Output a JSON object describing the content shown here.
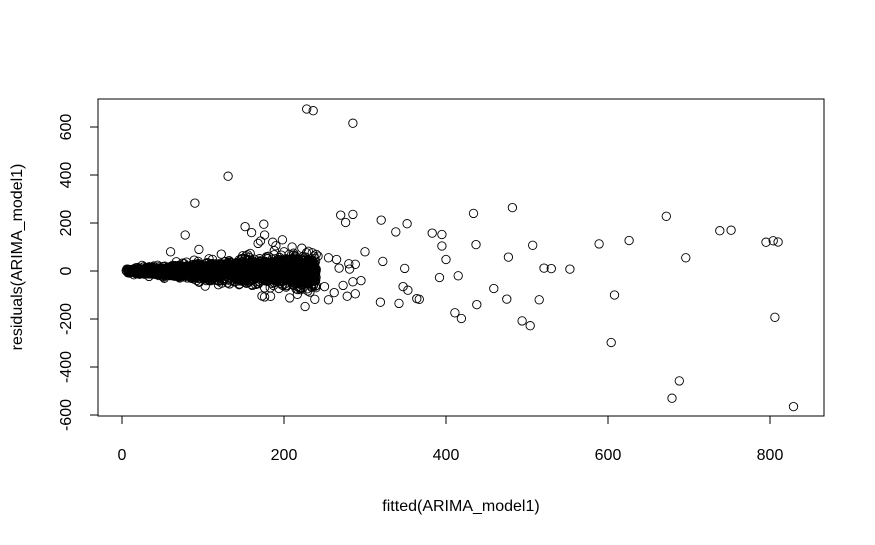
{
  "chart_data": {
    "type": "scatter",
    "title": "",
    "xlabel": "fitted(ARIMA_model1)",
    "ylabel": "residuals(ARIMA_model1)",
    "xlim": [
      -30,
      860
    ],
    "ylim": [
      -620,
      720
    ],
    "xticks": [
      0,
      200,
      400,
      600,
      800
    ],
    "yticks": [
      -600,
      -400,
      -200,
      0,
      200,
      400,
      600
    ],
    "xtick_labels": [
      "0",
      "200",
      "400",
      "600",
      "800"
    ],
    "ytick_labels": [
      "-600",
      "-400",
      "-200",
      "0",
      "200",
      "400",
      "600"
    ],
    "grid": false,
    "legend": "none",
    "marker": "open-circle",
    "colors": {
      "marker_stroke": "#000000",
      "axis": "#000000",
      "background": "#ffffff"
    },
    "series": [
      {
        "points": [
          [
            228,
            675
          ],
          [
            236,
            668
          ],
          [
            285,
            616
          ],
          [
            131,
            395
          ],
          [
            90,
            283
          ],
          [
            270,
            233
          ],
          [
            285,
            236
          ],
          [
            320,
            212
          ],
          [
            352,
            197
          ],
          [
            276,
            202
          ],
          [
            434,
            240
          ],
          [
            482,
            264
          ],
          [
            672,
            228
          ],
          [
            738,
            168
          ],
          [
            752,
            170
          ],
          [
            338,
            163
          ],
          [
            383,
            158
          ],
          [
            395,
            152
          ],
          [
            626,
            127
          ],
          [
            589,
            113
          ],
          [
            437,
            110
          ],
          [
            395,
            104
          ],
          [
            507,
            107
          ],
          [
            804,
            126
          ],
          [
            810,
            121
          ],
          [
            795,
            120
          ],
          [
            696,
            55
          ],
          [
            477,
            58
          ],
          [
            400,
            48
          ],
          [
            300,
            80
          ],
          [
            322,
            40
          ],
          [
            521,
            12
          ],
          [
            530,
            10
          ],
          [
            553,
            8
          ],
          [
            349,
            11
          ],
          [
            392,
            -27
          ],
          [
            415,
            -20
          ],
          [
            347,
            -65
          ],
          [
            353,
            -80
          ],
          [
            367,
            -118
          ],
          [
            364,
            -115
          ],
          [
            342,
            -135
          ],
          [
            319,
            -130
          ],
          [
            459,
            -73
          ],
          [
            475,
            -117
          ],
          [
            515,
            -120
          ],
          [
            438,
            -140
          ],
          [
            411,
            -174
          ],
          [
            419,
            -198
          ],
          [
            494,
            -208
          ],
          [
            504,
            -228
          ],
          [
            608,
            -100
          ],
          [
            806,
            -193
          ],
          [
            604,
            -298
          ],
          [
            688,
            -458
          ],
          [
            679,
            -530
          ],
          [
            829,
            -565
          ],
          [
            255,
            -120
          ],
          [
            238,
            -118
          ],
          [
            226,
            -148
          ],
          [
            207,
            -112
          ],
          [
            176,
            -108
          ],
          [
            250,
            -65
          ],
          [
            273,
            -60
          ],
          [
            285,
            -45
          ],
          [
            295,
            -40
          ],
          [
            288,
            -95
          ],
          [
            278,
            -105
          ],
          [
            262,
            -90
          ],
          [
            212,
            -60
          ],
          [
            183,
            -70
          ],
          [
            160,
            160
          ],
          [
            176,
            150
          ],
          [
            186,
            120
          ],
          [
            171,
            125
          ],
          [
            78,
            150
          ],
          [
            198,
            130
          ],
          [
            190,
            105
          ],
          [
            210,
            100
          ],
          [
            222,
            95
          ],
          [
            188,
            85
          ],
          [
            168,
            115
          ],
          [
            242,
            62
          ],
          [
            255,
            55
          ],
          [
            265,
            48
          ],
          [
            280,
            30
          ],
          [
            288,
            28
          ],
          [
            230,
            82
          ],
          [
            232,
            -88
          ],
          [
            200,
            80
          ],
          [
            175,
            195
          ],
          [
            152,
            185
          ],
          [
            268,
            12
          ],
          [
            281,
            8
          ],
          [
            60,
            80
          ],
          [
            95,
            90
          ]
        ]
      }
    ],
    "dense_band": {
      "x_range": [
        5,
        240
      ],
      "center_y": 0,
      "spread_at_x0": 8,
      "spread_at_xmax": 60
    }
  }
}
